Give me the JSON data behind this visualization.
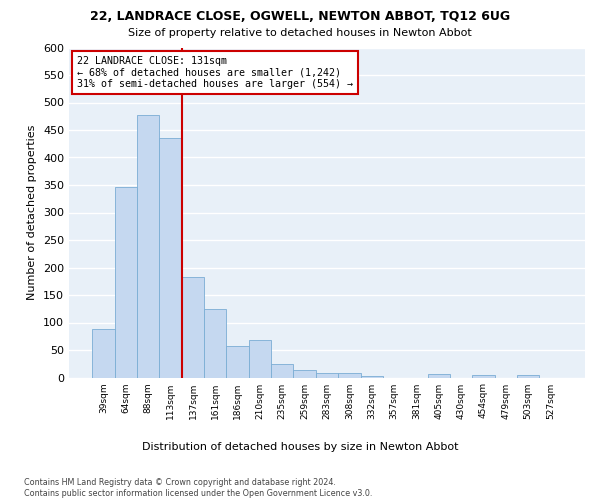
{
  "title": "22, LANDRACE CLOSE, OGWELL, NEWTON ABBOT, TQ12 6UG",
  "subtitle": "Size of property relative to detached houses in Newton Abbot",
  "xlabel": "Distribution of detached houses by size in Newton Abbot",
  "ylabel": "Number of detached properties",
  "bar_color": "#c5d8f0",
  "bar_edge_color": "#7aadd4",
  "background_color": "#e8f0f8",
  "grid_color": "#ffffff",
  "annotation_box_color": "#cc0000",
  "vline_color": "#cc0000",
  "annotation_text": "22 LANDRACE CLOSE: 131sqm\n← 68% of detached houses are smaller (1,242)\n31% of semi-detached houses are larger (554) →",
  "categories": [
    "39sqm",
    "64sqm",
    "88sqm",
    "113sqm",
    "137sqm",
    "161sqm",
    "186sqm",
    "210sqm",
    "235sqm",
    "259sqm",
    "283sqm",
    "308sqm",
    "332sqm",
    "357sqm",
    "381sqm",
    "405sqm",
    "430sqm",
    "454sqm",
    "479sqm",
    "503sqm",
    "527sqm"
  ],
  "values": [
    88,
    347,
    478,
    435,
    182,
    125,
    57,
    68,
    25,
    13,
    9,
    8,
    2,
    0,
    0,
    7,
    0,
    5,
    0,
    5,
    0
  ],
  "ylim": [
    0,
    600
  ],
  "yticks": [
    0,
    50,
    100,
    150,
    200,
    250,
    300,
    350,
    400,
    450,
    500,
    550,
    600
  ],
  "footnote": "Contains HM Land Registry data © Crown copyright and database right 2024.\nContains public sector information licensed under the Open Government Licence v3.0.",
  "vline_bin_index": 4
}
